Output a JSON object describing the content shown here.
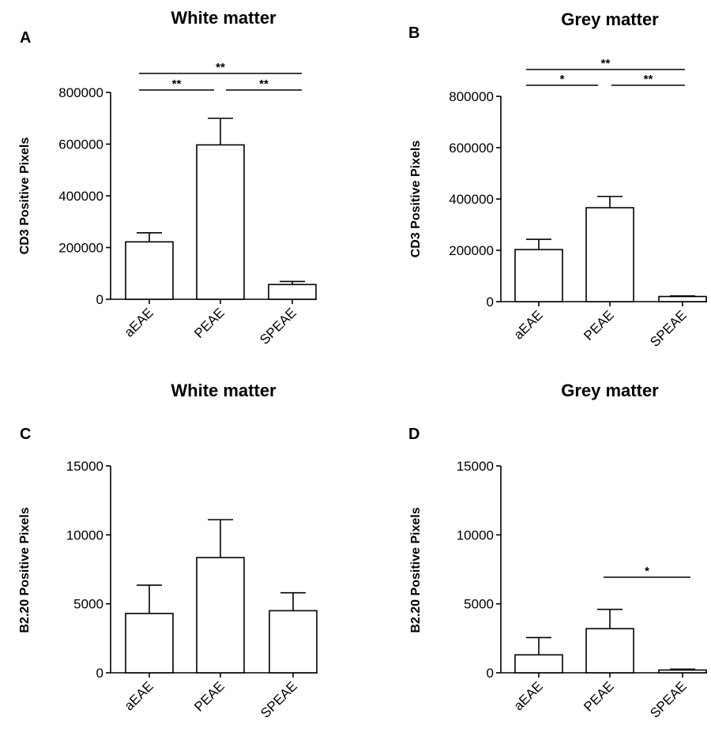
{
  "chart_data": [
    {
      "panel_label": "A",
      "type": "bar",
      "title": "White matter",
      "ylabel": "CD3 Positive Pixels",
      "ylim": [
        0,
        800000
      ],
      "yticks": [
        "0",
        "200000",
        "400000",
        "600000",
        "800000"
      ],
      "categories": [
        "aEAE",
        "PEAE",
        "SPEAE"
      ],
      "values": [
        222000,
        597000,
        57000
      ],
      "errors": [
        35000,
        103000,
        12000
      ],
      "significance": [
        {
          "from": 0,
          "to": 1,
          "label": "**"
        },
        {
          "from": 1,
          "to": 2,
          "label": "**"
        },
        {
          "from": 0,
          "to": 2,
          "label": "**"
        }
      ]
    },
    {
      "panel_label": "B",
      "type": "bar",
      "title": "Grey matter",
      "ylabel": "CD3 Positive Pixels",
      "ylim": [
        0,
        800000
      ],
      "yticks": [
        "0",
        "200000",
        "400000",
        "600000",
        "800000"
      ],
      "categories": [
        "aEAE",
        "PEAE",
        "SPEAE"
      ],
      "values": [
        203000,
        366000,
        20000
      ],
      "errors": [
        40000,
        44000,
        2000
      ],
      "significance": [
        {
          "from": 0,
          "to": 1,
          "label": "*"
        },
        {
          "from": 1,
          "to": 2,
          "label": "**"
        },
        {
          "from": 0,
          "to": 2,
          "label": "**"
        }
      ]
    },
    {
      "panel_label": "C",
      "type": "bar",
      "title": "White matter",
      "ylabel": "B2.20 Positive Pixels",
      "ylim": [
        0,
        15000
      ],
      "yticks": [
        "0",
        "5000",
        "10000",
        "15000"
      ],
      "categories": [
        "aEAE",
        "PEAE",
        "SPEAE"
      ],
      "values": [
        4300,
        8350,
        4500
      ],
      "errors": [
        2050,
        2750,
        1300
      ],
      "significance": []
    },
    {
      "panel_label": "D",
      "type": "bar",
      "title": "Grey matter",
      "ylabel": "B2.20 Positive Pixels",
      "ylim": [
        0,
        15000
      ],
      "yticks": [
        "0",
        "5000",
        "10000",
        "15000"
      ],
      "categories": [
        "aEAE",
        "PEAE",
        "SPEAE"
      ],
      "values": [
        1300,
        3200,
        200
      ],
      "errors": [
        1250,
        1400,
        60
      ],
      "significance": [
        {
          "from": 1,
          "to": 2,
          "label": "*"
        }
      ]
    }
  ]
}
